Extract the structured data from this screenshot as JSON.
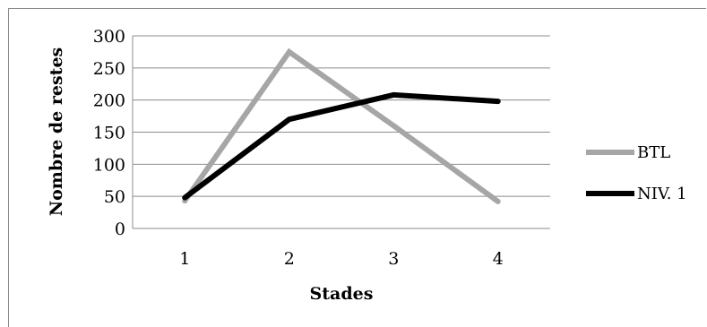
{
  "chart_data": {
    "type": "line",
    "title": "",
    "xlabel": "Stades",
    "ylabel": "Nombre de restes",
    "categories": [
      "1",
      "2",
      "3",
      "4"
    ],
    "yticks": [
      "0",
      "50",
      "100",
      "150",
      "200",
      "250",
      "300"
    ],
    "ylim": [
      0,
      300
    ],
    "grid": true,
    "legend_position": "right",
    "series": [
      {
        "name": "BTL",
        "color": "#a6a6a6",
        "values": [
          43,
          275,
          160,
          42
        ]
      },
      {
        "name": "NIV. 1",
        "color": "#000000",
        "values": [
          48,
          170,
          208,
          198
        ]
      }
    ]
  }
}
